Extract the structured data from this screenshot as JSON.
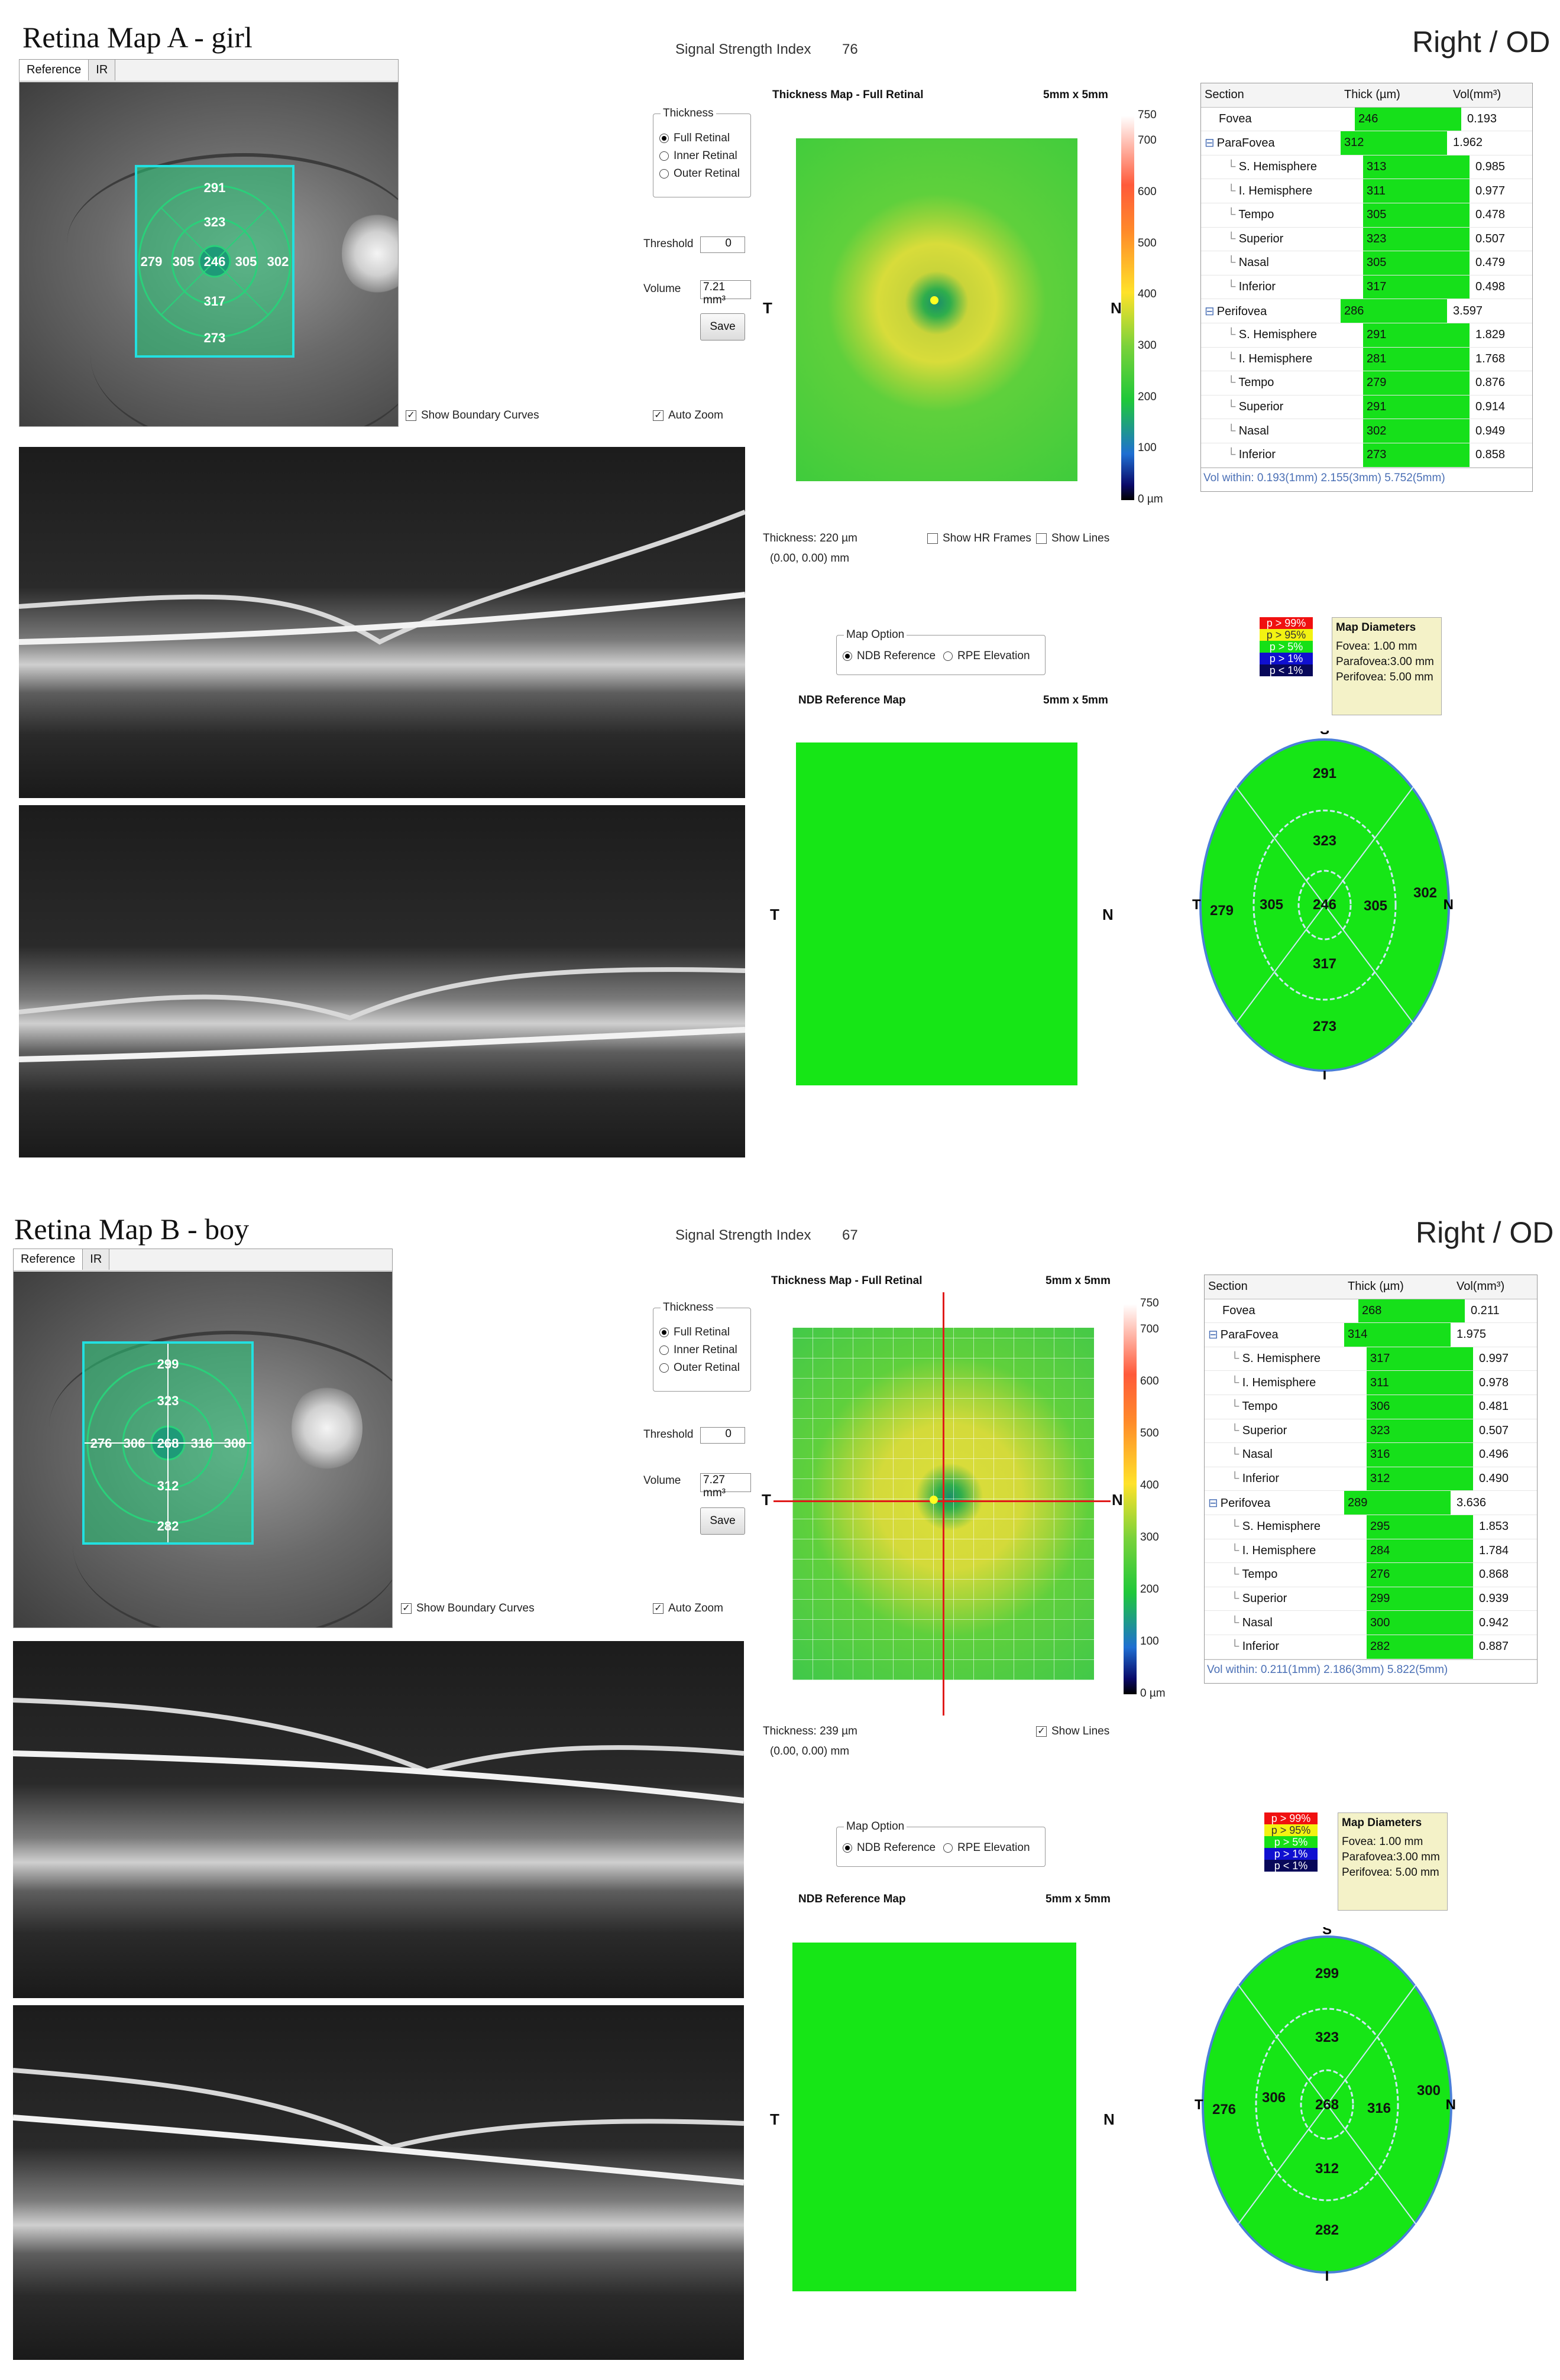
{
  "panels": [
    {
      "title": "Retina Map A - girl",
      "eye": "Right / OD",
      "ssi_label": "Signal Strength Index",
      "ssi_value": "76",
      "tabs": [
        "Reference",
        "IR"
      ],
      "grid": {
        "top": "291",
        "sh": "323",
        "t": "279",
        "ti": "305",
        "c": "246",
        "ni": "305",
        "n": "302",
        "ih": "317",
        "bottom": "273"
      },
      "show_boundary": "Show Boundary Curves",
      "auto_zoom": "Auto Zoom",
      "thickness_group": "Thickness",
      "opt_full": "Full Retinal",
      "opt_inner": "Inner Retinal",
      "opt_outer": "Outer Retinal",
      "threshold_label": "Threshold",
      "threshold_value": "0",
      "volume_label": "Volume",
      "volume_value": "7.21 mm³",
      "save": "Save",
      "map_title": "Thickness Map - Full Retinal",
      "map_size": "5mm x 5mm",
      "T": "T",
      "N": "N",
      "scale": [
        "750",
        "700",
        "600",
        "500",
        "400",
        "300",
        "200",
        "100",
        "0 µm"
      ],
      "thick_readout": "Thickness: 220 µm",
      "coords": "(0.00, 0.00) mm",
      "show_hr": "Show HR Frames",
      "show_lines": "Show Lines",
      "map_option": "Map Option",
      "ndb_ref": "NDB Reference",
      "rpe": "RPE Elevation",
      "ndb_title": "NDB Reference Map",
      "pvals": [
        "p > 99%",
        "p > 95%",
        "p > 5%",
        "p > 1%",
        "p < 1%"
      ],
      "mapdiam_title": "Map Diameters",
      "mapdiam": [
        "Fovea:      1.00 mm",
        "Parafovea:3.00 mm",
        "Perifovea: 5.00 mm"
      ],
      "S": "S",
      "I": "I",
      "table_head": [
        "Section",
        "Thick (µm)",
        "Vol(mm³)"
      ],
      "rows": [
        [
          "Fovea",
          "246",
          "0.193"
        ],
        [
          "ParaFovea",
          "312",
          "1.962"
        ],
        [
          "S. Hemisphere",
          "313",
          "0.985"
        ],
        [
          "I. Hemisphere",
          "311",
          "0.977"
        ],
        [
          "Tempo",
          "305",
          "0.478"
        ],
        [
          "Superior",
          "323",
          "0.507"
        ],
        [
          "Nasal",
          "305",
          "0.479"
        ],
        [
          "Inferior",
          "317",
          "0.498"
        ],
        [
          "Perifovea",
          "286",
          "3.597"
        ],
        [
          "S. Hemisphere",
          "291",
          "1.829"
        ],
        [
          "I. Hemisphere",
          "281",
          "1.768"
        ],
        [
          "Tempo",
          "279",
          "0.876"
        ],
        [
          "Superior",
          "291",
          "0.914"
        ],
        [
          "Nasal",
          "302",
          "0.949"
        ],
        [
          "Inferior",
          "273",
          "0.858"
        ]
      ],
      "vol_within": "Vol within: 0.193(1mm) 2.155(3mm) 5.752(5mm)"
    },
    {
      "title": "Retina Map B - boy",
      "eye": "Right / OD",
      "ssi_label": "Signal Strength Index",
      "ssi_value": "67",
      "tabs": [
        "Reference",
        "IR"
      ],
      "grid": {
        "top": "299",
        "sh": "323",
        "t": "276",
        "ti": "306",
        "c": "268",
        "ni": "316",
        "n": "300",
        "ih": "312",
        "bottom": "282"
      },
      "show_boundary": "Show Boundary Curves",
      "auto_zoom": "Auto Zoom",
      "thickness_group": "Thickness",
      "opt_full": "Full Retinal",
      "opt_inner": "Inner Retinal",
      "opt_outer": "Outer Retinal",
      "threshold_label": "Threshold",
      "threshold_value": "0",
      "volume_label": "Volume",
      "volume_value": "7.27 mm³",
      "save": "Save",
      "map_title": "Thickness Map - Full Retinal",
      "map_size": "5mm x 5mm",
      "T": "T",
      "N": "N",
      "scale": [
        "750",
        "700",
        "600",
        "500",
        "400",
        "300",
        "200",
        "100",
        "0 µm"
      ],
      "thick_readout": "Thickness: 239 µm",
      "coords": "(0.00, 0.00) mm",
      "show_lines": "Show Lines",
      "map_option": "Map Option",
      "ndb_ref": "NDB Reference",
      "rpe": "RPE Elevation",
      "ndb_title": "NDB Reference Map",
      "pvals": [
        "p > 99%",
        "p > 95%",
        "p > 5%",
        "p > 1%",
        "p < 1%"
      ],
      "mapdiam_title": "Map Diameters",
      "mapdiam": [
        "Fovea:      1.00 mm",
        "Parafovea:3.00 mm",
        "Perifovea: 5.00 mm"
      ],
      "S": "S",
      "I": "I",
      "table_head": [
        "Section",
        "Thick (µm)",
        "Vol(mm³)"
      ],
      "rows": [
        [
          "Fovea",
          "268",
          "0.211"
        ],
        [
          "ParaFovea",
          "314",
          "1.975"
        ],
        [
          "S. Hemisphere",
          "317",
          "0.997"
        ],
        [
          "I. Hemisphere",
          "311",
          "0.978"
        ],
        [
          "Tempo",
          "306",
          "0.481"
        ],
        [
          "Superior",
          "323",
          "0.507"
        ],
        [
          "Nasal",
          "316",
          "0.496"
        ],
        [
          "Inferior",
          "312",
          "0.490"
        ],
        [
          "Perifovea",
          "289",
          "3.636"
        ],
        [
          "S. Hemisphere",
          "295",
          "1.853"
        ],
        [
          "I. Hemisphere",
          "284",
          "1.784"
        ],
        [
          "Tempo",
          "276",
          "0.868"
        ],
        [
          "Superior",
          "299",
          "0.939"
        ],
        [
          "Nasal",
          "300",
          "0.942"
        ],
        [
          "Inferior",
          "282",
          "0.887"
        ]
      ],
      "vol_within": "Vol within: 0.211(1mm) 2.186(3mm) 5.822(5mm)"
    }
  ]
}
